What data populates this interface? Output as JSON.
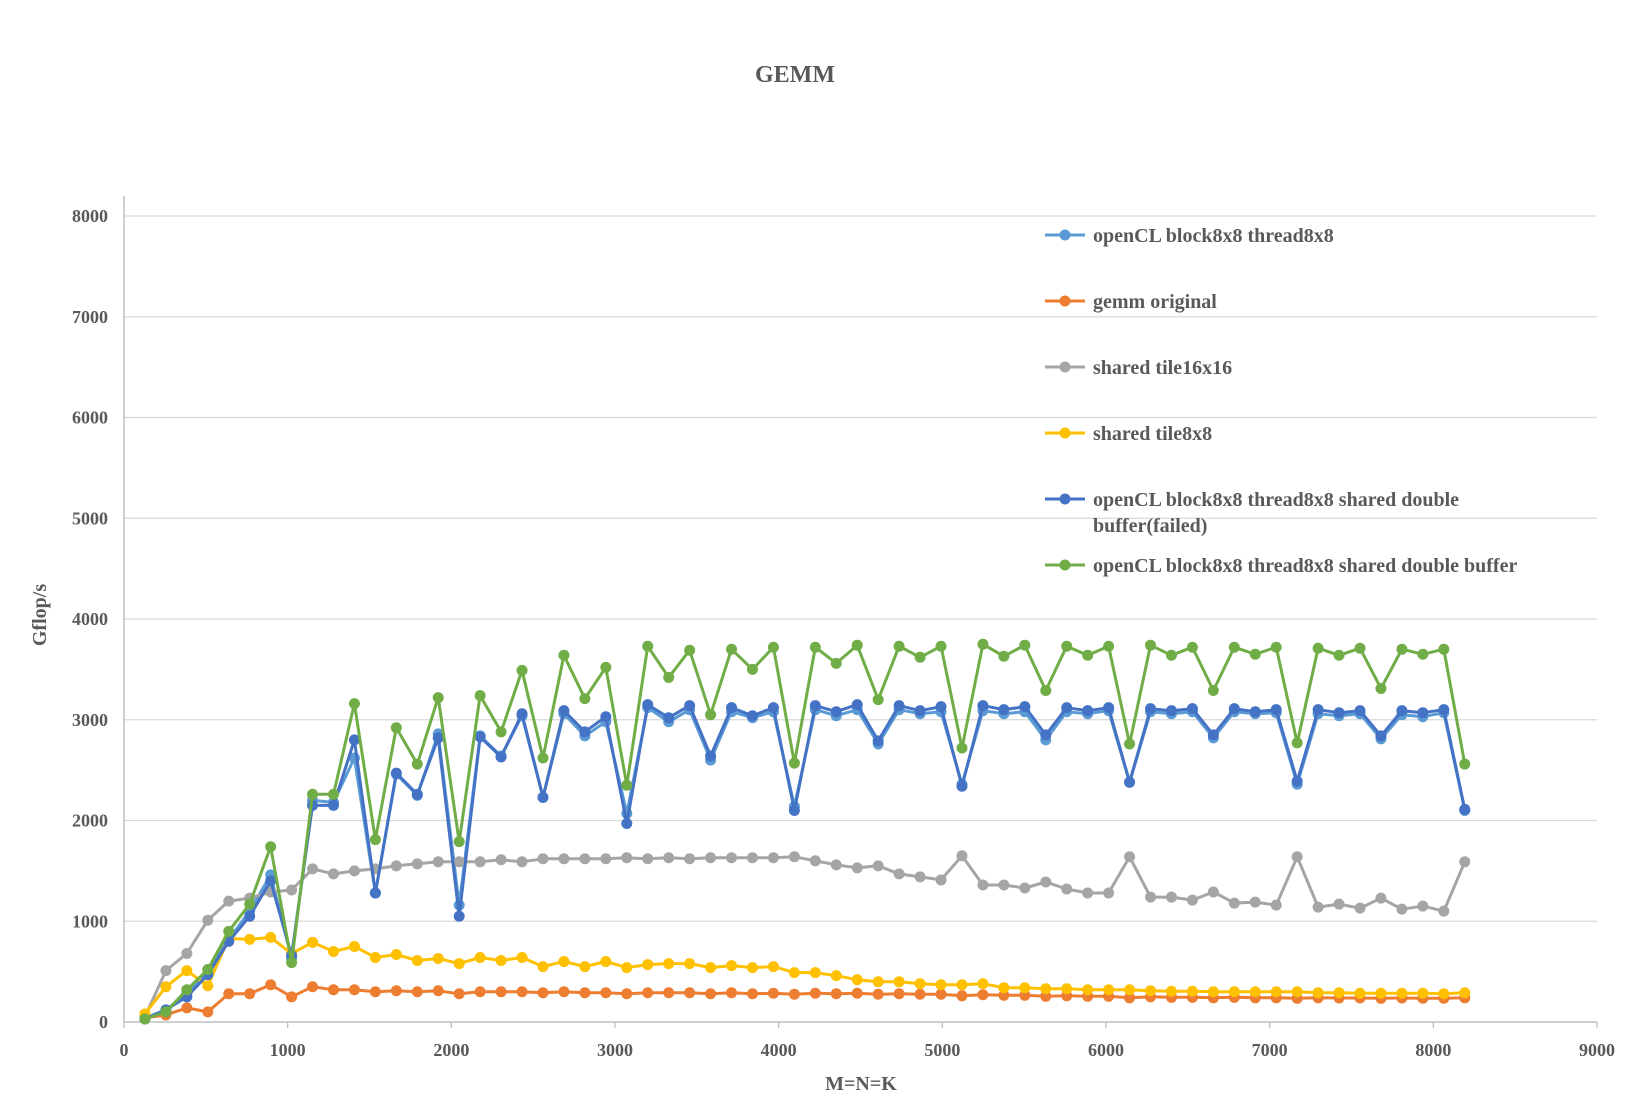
{
  "chart_data": {
    "type": "line",
    "title": "GEMM",
    "xlabel": "M=N=K",
    "ylabel": "Gflop/s",
    "xlim": [
      0,
      9000
    ],
    "ylim": [
      0,
      8000
    ],
    "x_ticks": [
      "0",
      "1000",
      "2000",
      "3000",
      "4000",
      "5000",
      "6000",
      "7000",
      "8000",
      "9000"
    ],
    "y_ticks": [
      "0",
      "1000",
      "2000",
      "3000",
      "4000",
      "5000",
      "6000",
      "7000",
      "8000"
    ],
    "grid": "horizontal",
    "legend_position": "right",
    "x": [
      128,
      256,
      384,
      512,
      640,
      768,
      896,
      1024,
      1152,
      1280,
      1408,
      1536,
      1664,
      1792,
      1920,
      2048,
      2176,
      2304,
      2432,
      2560,
      2688,
      2816,
      2944,
      3072,
      3200,
      3328,
      3456,
      3584,
      3712,
      3840,
      3968,
      4096,
      4224,
      4352,
      4480,
      4608,
      4736,
      4864,
      4992,
      5120,
      5248,
      5376,
      5504,
      5632,
      5760,
      5888,
      6016,
      6144,
      6272,
      6400,
      6528,
      6656,
      6784,
      6912,
      7040,
      7168,
      7296,
      7424,
      7552,
      7680,
      7808,
      7936,
      8064,
      8192
    ],
    "series": [
      {
        "name": "openCL block8x8 thread8x8",
        "color": "#5B9BD5",
        "values": [
          40,
          120,
          280,
          520,
          820,
          1100,
          1460,
          630,
          2200,
          2180,
          2620,
          1280,
          2460,
          2250,
          2860,
          1160,
          2840,
          2640,
          3040,
          2230,
          3060,
          2840,
          2980,
          2070,
          3120,
          2980,
          3100,
          2600,
          3080,
          3020,
          3080,
          2140,
          3100,
          3040,
          3100,
          2760,
          3100,
          3060,
          3080,
          2360,
          3090,
          3060,
          3080,
          2800,
          3080,
          3060,
          3090,
          2380,
          3080,
          3060,
          3080,
          2820,
          3080,
          3060,
          3070,
          2360,
          3060,
          3040,
          3060,
          2810,
          3050,
          3030,
          3070,
          2100
        ]
      },
      {
        "name": "gemm original",
        "color": "#ED7D31",
        "values": [
          40,
          70,
          140,
          100,
          280,
          280,
          370,
          250,
          350,
          320,
          320,
          300,
          310,
          300,
          310,
          280,
          300,
          300,
          300,
          290,
          300,
          290,
          290,
          280,
          290,
          290,
          290,
          280,
          290,
          280,
          285,
          275,
          285,
          280,
          285,
          275,
          280,
          275,
          275,
          260,
          270,
          265,
          265,
          255,
          260,
          255,
          255,
          240,
          250,
          245,
          245,
          240,
          245,
          240,
          240,
          235,
          240,
          238,
          238,
          235,
          238,
          236,
          236,
          240
        ]
      },
      {
        "name": "shared tile16x16",
        "color": "#A5A5A5",
        "values": [
          50,
          510,
          680,
          1010,
          1200,
          1230,
          1290,
          1310,
          1520,
          1470,
          1500,
          1520,
          1550,
          1570,
          1590,
          1590,
          1590,
          1610,
          1590,
          1620,
          1620,
          1620,
          1620,
          1630,
          1620,
          1630,
          1620,
          1630,
          1630,
          1630,
          1630,
          1640,
          1600,
          1560,
          1530,
          1550,
          1470,
          1440,
          1410,
          1650,
          1360,
          1360,
          1330,
          1390,
          1320,
          1280,
          1280,
          1640,
          1240,
          1240,
          1210,
          1290,
          1180,
          1190,
          1160,
          1640,
          1140,
          1170,
          1130,
          1230,
          1120,
          1150,
          1100,
          1590
        ]
      },
      {
        "name": "shared tile8x8",
        "color": "#FFC000",
        "values": [
          80,
          350,
          510,
          360,
          830,
          820,
          840,
          680,
          790,
          700,
          750,
          640,
          670,
          610,
          630,
          580,
          640,
          610,
          640,
          550,
          600,
          550,
          600,
          540,
          570,
          580,
          580,
          540,
          560,
          540,
          550,
          490,
          490,
          460,
          420,
          400,
          400,
          380,
          370,
          370,
          380,
          340,
          340,
          330,
          330,
          320,
          320,
          320,
          310,
          305,
          305,
          300,
          300,
          300,
          300,
          300,
          290,
          290,
          285,
          285,
          285,
          285,
          280,
          290
        ]
      },
      {
        "name": "openCL block8x8 thread8x8 shared double buffer(failed)",
        "color": "#4472C4",
        "values": [
          30,
          120,
          250,
          470,
          800,
          1050,
          1400,
          660,
          2150,
          2150,
          2800,
          1280,
          2470,
          2260,
          2820,
          1050,
          2830,
          2630,
          3060,
          2230,
          3090,
          2880,
          3030,
          1970,
          3150,
          3020,
          3140,
          2640,
          3120,
          3040,
          3120,
          2100,
          3140,
          3080,
          3150,
          2790,
          3140,
          3090,
          3130,
          2340,
          3140,
          3100,
          3130,
          2850,
          3120,
          3090,
          3120,
          2380,
          3110,
          3090,
          3110,
          2850,
          3110,
          3080,
          3100,
          2390,
          3100,
          3070,
          3090,
          2840,
          3090,
          3070,
          3100,
          2110
        ]
      },
      {
        "name": "openCL block8x8 thread8x8 shared double buffer",
        "color": "#70AD47",
        "values": [
          30,
          100,
          320,
          520,
          900,
          1170,
          1740,
          590,
          2260,
          2260,
          3160,
          1810,
          2920,
          2560,
          3220,
          1790,
          3240,
          2880,
          3490,
          2620,
          3640,
          3210,
          3520,
          2350,
          3730,
          3420,
          3690,
          3050,
          3700,
          3500,
          3720,
          2570,
          3720,
          3560,
          3740,
          3200,
          3730,
          3620,
          3730,
          2720,
          3750,
          3630,
          3740,
          3290,
          3730,
          3640,
          3730,
          2760,
          3740,
          3640,
          3720,
          3290,
          3720,
          3650,
          3720,
          2770,
          3710,
          3640,
          3710,
          3310,
          3700,
          3650,
          3700,
          2560
        ]
      }
    ]
  }
}
